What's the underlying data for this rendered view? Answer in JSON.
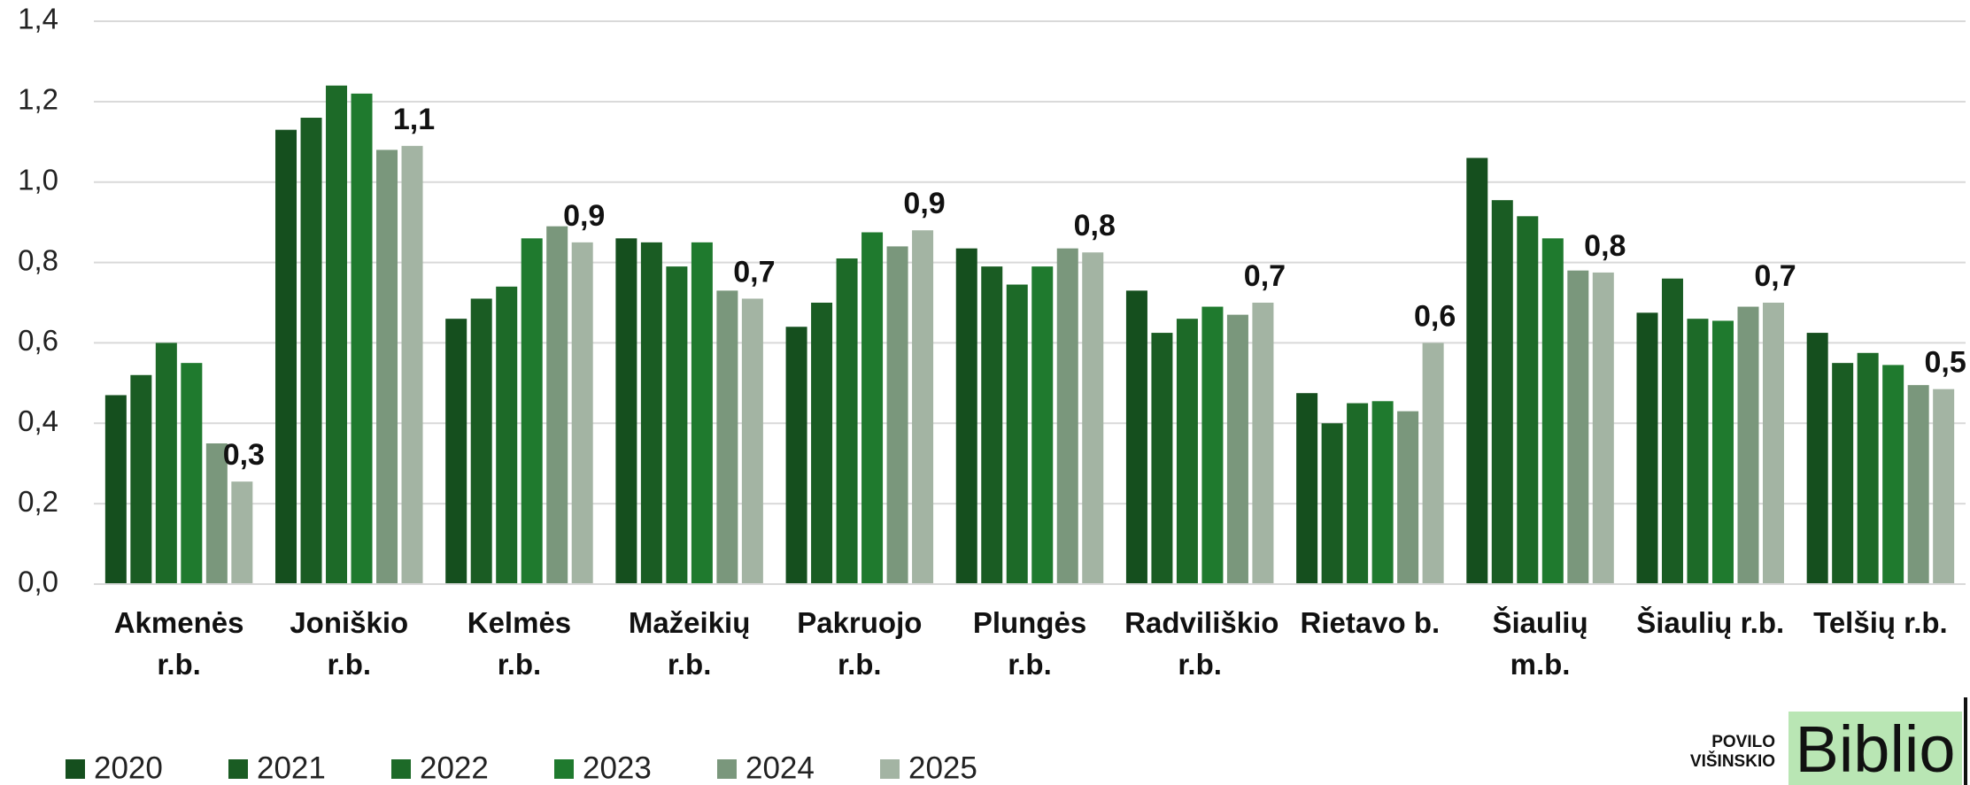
{
  "chart_data": {
    "type": "bar",
    "categories": [
      "Akmenės r.b.",
      "Joniškio r.b.",
      "Kelmės r.b.",
      "Mažeikių r.b.",
      "Pakruojo r.b.",
      "Plungės r.b.",
      "Radviliškio r.b.",
      "Rietavo b.",
      "Šiaulių m.b.",
      "Šiaulių r.b.",
      "Telšių r.b."
    ],
    "series": [
      {
        "name": "2020",
        "color": "#154f1e",
        "values": [
          0.47,
          1.13,
          0.66,
          0.86,
          0.64,
          0.835,
          0.73,
          0.475,
          1.06,
          0.675,
          0.625
        ]
      },
      {
        "name": "2021",
        "color": "#1a5c23",
        "values": [
          0.52,
          1.16,
          0.71,
          0.85,
          0.7,
          0.79,
          0.625,
          0.4,
          0.955,
          0.76,
          0.55
        ]
      },
      {
        "name": "2022",
        "color": "#1d6a28",
        "values": [
          0.6,
          1.24,
          0.74,
          0.79,
          0.81,
          0.745,
          0.66,
          0.45,
          0.915,
          0.66,
          0.575
        ]
      },
      {
        "name": "2023",
        "color": "#1f7a2e",
        "values": [
          0.55,
          1.22,
          0.86,
          0.85,
          0.875,
          0.79,
          0.69,
          0.455,
          0.86,
          0.655,
          0.545
        ]
      },
      {
        "name": "2024",
        "color": "#7a977c",
        "values": [
          0.35,
          1.08,
          0.89,
          0.73,
          0.84,
          0.835,
          0.67,
          0.43,
          0.78,
          0.69,
          0.495
        ]
      },
      {
        "name": "2025",
        "color": "#a3b4a3",
        "values": [
          0.255,
          1.09,
          0.85,
          0.71,
          0.88,
          0.825,
          0.7,
          0.6,
          0.775,
          0.7,
          0.485
        ],
        "value_labels": [
          "0,3",
          "1,1",
          "0,9",
          "0,7",
          "0,9",
          "0,8",
          "0,7",
          "0,6",
          "0,8",
          "0,7",
          "0,5"
        ]
      }
    ],
    "ylim": [
      0,
      1.4
    ],
    "yticks": [
      {
        "value": 0,
        "label": "0,0"
      },
      {
        "value": 0.2,
        "label": "0,2"
      },
      {
        "value": 0.4,
        "label": "0,4"
      },
      {
        "value": 0.6,
        "label": "0,6"
      },
      {
        "value": 0.8,
        "label": "0,8"
      },
      {
        "value": 1.0,
        "label": "1,0"
      },
      {
        "value": 1.2,
        "label": "1,2"
      },
      {
        "value": 1.4,
        "label": "1,4"
      }
    ],
    "grid": true,
    "legend": "bottom-left"
  },
  "logo": {
    "line1": "POVILO",
    "line2": "VIŠINSKIO",
    "brand": "Biblio"
  }
}
